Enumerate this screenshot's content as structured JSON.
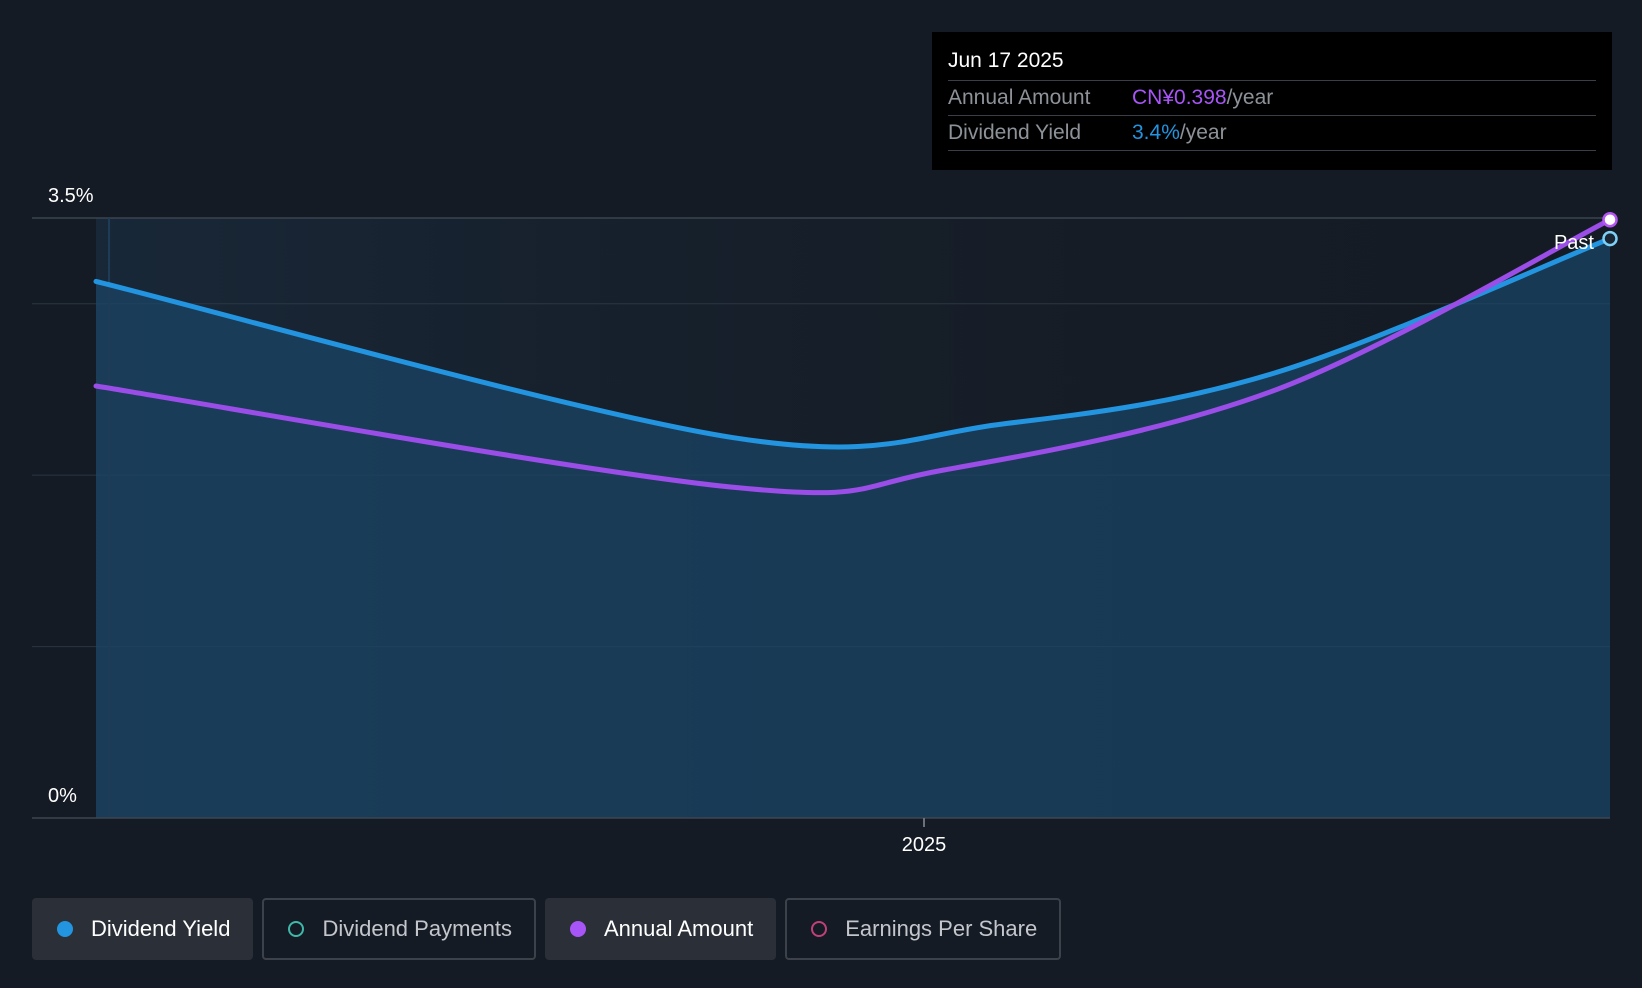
{
  "chart_data": {
    "type": "line",
    "y_ticks": [
      "3.5%",
      "0%"
    ],
    "ylim": [
      0,
      3.5
    ],
    "x_tick_labels": [
      "2025"
    ],
    "x_range": [
      "2024-06",
      "2025-06-17"
    ],
    "series": [
      {
        "name": "Dividend Yield",
        "color": "#2394df",
        "area": true,
        "points": [
          [
            0.0,
            3.13
          ],
          [
            0.42,
            2.22
          ],
          [
            0.6,
            2.3
          ],
          [
            0.78,
            2.6
          ],
          [
            1.0,
            3.38
          ]
        ]
      },
      {
        "name": "Annual Amount",
        "color": "#9b4de8",
        "area": false,
        "points": [
          [
            0.0,
            2.52
          ],
          [
            0.42,
            1.93
          ],
          [
            0.56,
            2.03
          ],
          [
            0.78,
            2.5
          ],
          [
            1.0,
            3.49
          ]
        ]
      }
    ],
    "end_marker_label": "Past",
    "grid": true
  },
  "tooltip": {
    "date": "Jun 17 2025",
    "rows": [
      {
        "label": "Annual Amount",
        "value": "CN¥0.398",
        "unit": "/year",
        "color": "#a855f7"
      },
      {
        "label": "Dividend Yield",
        "value": "3.4%",
        "unit": "/year",
        "color": "#2394df"
      }
    ]
  },
  "legend": [
    {
      "label": "Dividend Yield",
      "color": "#2394df",
      "active": true
    },
    {
      "label": "Dividend Payments",
      "color": "#3fb8a9",
      "active": false
    },
    {
      "label": "Annual Amount",
      "color": "#a855f7",
      "active": true
    },
    {
      "label": "Earnings Per Share",
      "color": "#c0407a",
      "active": false
    }
  ]
}
